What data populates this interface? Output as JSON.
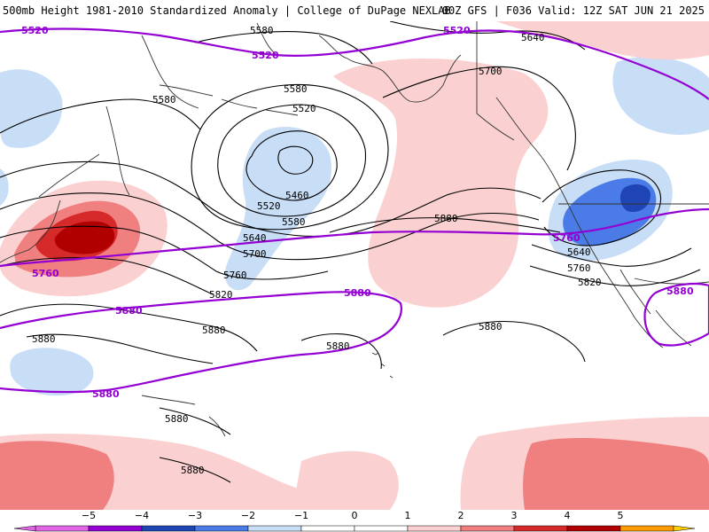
{
  "header": {
    "left_title": "500mb Height 1981-2010 Standardized Anomaly | College of DuPage NEXLAB",
    "right_title": "00Z GFS | F036 Valid: 12Z SAT JUN 21 2025"
  },
  "colors": {
    "neg5": "#e066e6",
    "neg4": "#9400d3",
    "neg3": "#1f45b5",
    "neg2": "#4a7be6",
    "neg1": "#c8ddf6",
    "pos1": "#fad0d0",
    "pos2": "#f08080",
    "pos3": "#d62a2a",
    "pos4": "#b00000",
    "pos5": "#ff9a00",
    "pos6": "#ffd000",
    "height_contour": "#000000",
    "reference_contour": "#9400d3",
    "coastline": "#333333"
  },
  "map": {
    "black_contours": [
      {
        "id": "5580-north",
        "label": "5580"
      },
      {
        "id": "5580-west",
        "label": "5580"
      },
      {
        "id": "5580-low",
        "label": "5580"
      },
      {
        "id": "5520-low",
        "label": "5520"
      },
      {
        "id": "5460-low",
        "label": "5460"
      },
      {
        "id": "5520-low-b",
        "label": "5520"
      },
      {
        "id": "5580-low-b",
        "label": "5580"
      },
      {
        "id": "5640-low",
        "label": "5640"
      },
      {
        "id": "5700-low",
        "label": "5700"
      },
      {
        "id": "5760-low",
        "label": "5760"
      },
      {
        "id": "5820-low",
        "label": "5820"
      },
      {
        "id": "5640-ne",
        "label": "5640"
      },
      {
        "id": "5700-ne",
        "label": "5700"
      },
      {
        "id": "5880-central",
        "label": "5880"
      },
      {
        "id": "5640-east",
        "label": "5640"
      },
      {
        "id": "5760-east",
        "label": "5760"
      },
      {
        "id": "5820-east",
        "label": "5820"
      },
      {
        "id": "5880-west",
        "label": "5880"
      },
      {
        "id": "5880-west-b",
        "label": "5880"
      },
      {
        "id": "5880-mid",
        "label": "5880"
      },
      {
        "id": "5880-east",
        "label": "5880"
      },
      {
        "id": "5880-south",
        "label": "5880"
      },
      {
        "id": "5880-south-b",
        "label": "5880"
      }
    ],
    "reference_contours": [
      {
        "id": "ref-5520-a",
        "label": "5520"
      },
      {
        "id": "ref-5520-b",
        "label": "5520"
      },
      {
        "id": "ref-5520-c",
        "label": "5520"
      },
      {
        "id": "ref-5760-west",
        "label": "5760"
      },
      {
        "id": "ref-5760-east",
        "label": "5760"
      },
      {
        "id": "ref-5880-a",
        "label": "5880"
      },
      {
        "id": "ref-5880-b",
        "label": "5880"
      },
      {
        "id": "ref-5880-c",
        "label": "5880"
      },
      {
        "id": "ref-5880-d",
        "label": "5880"
      }
    ]
  },
  "colorbar": {
    "ticks": [
      "−5",
      "−4",
      "−3",
      "−2",
      "−1",
      "0",
      "1",
      "2",
      "3",
      "4",
      "5"
    ],
    "range": [
      -6,
      6
    ]
  }
}
